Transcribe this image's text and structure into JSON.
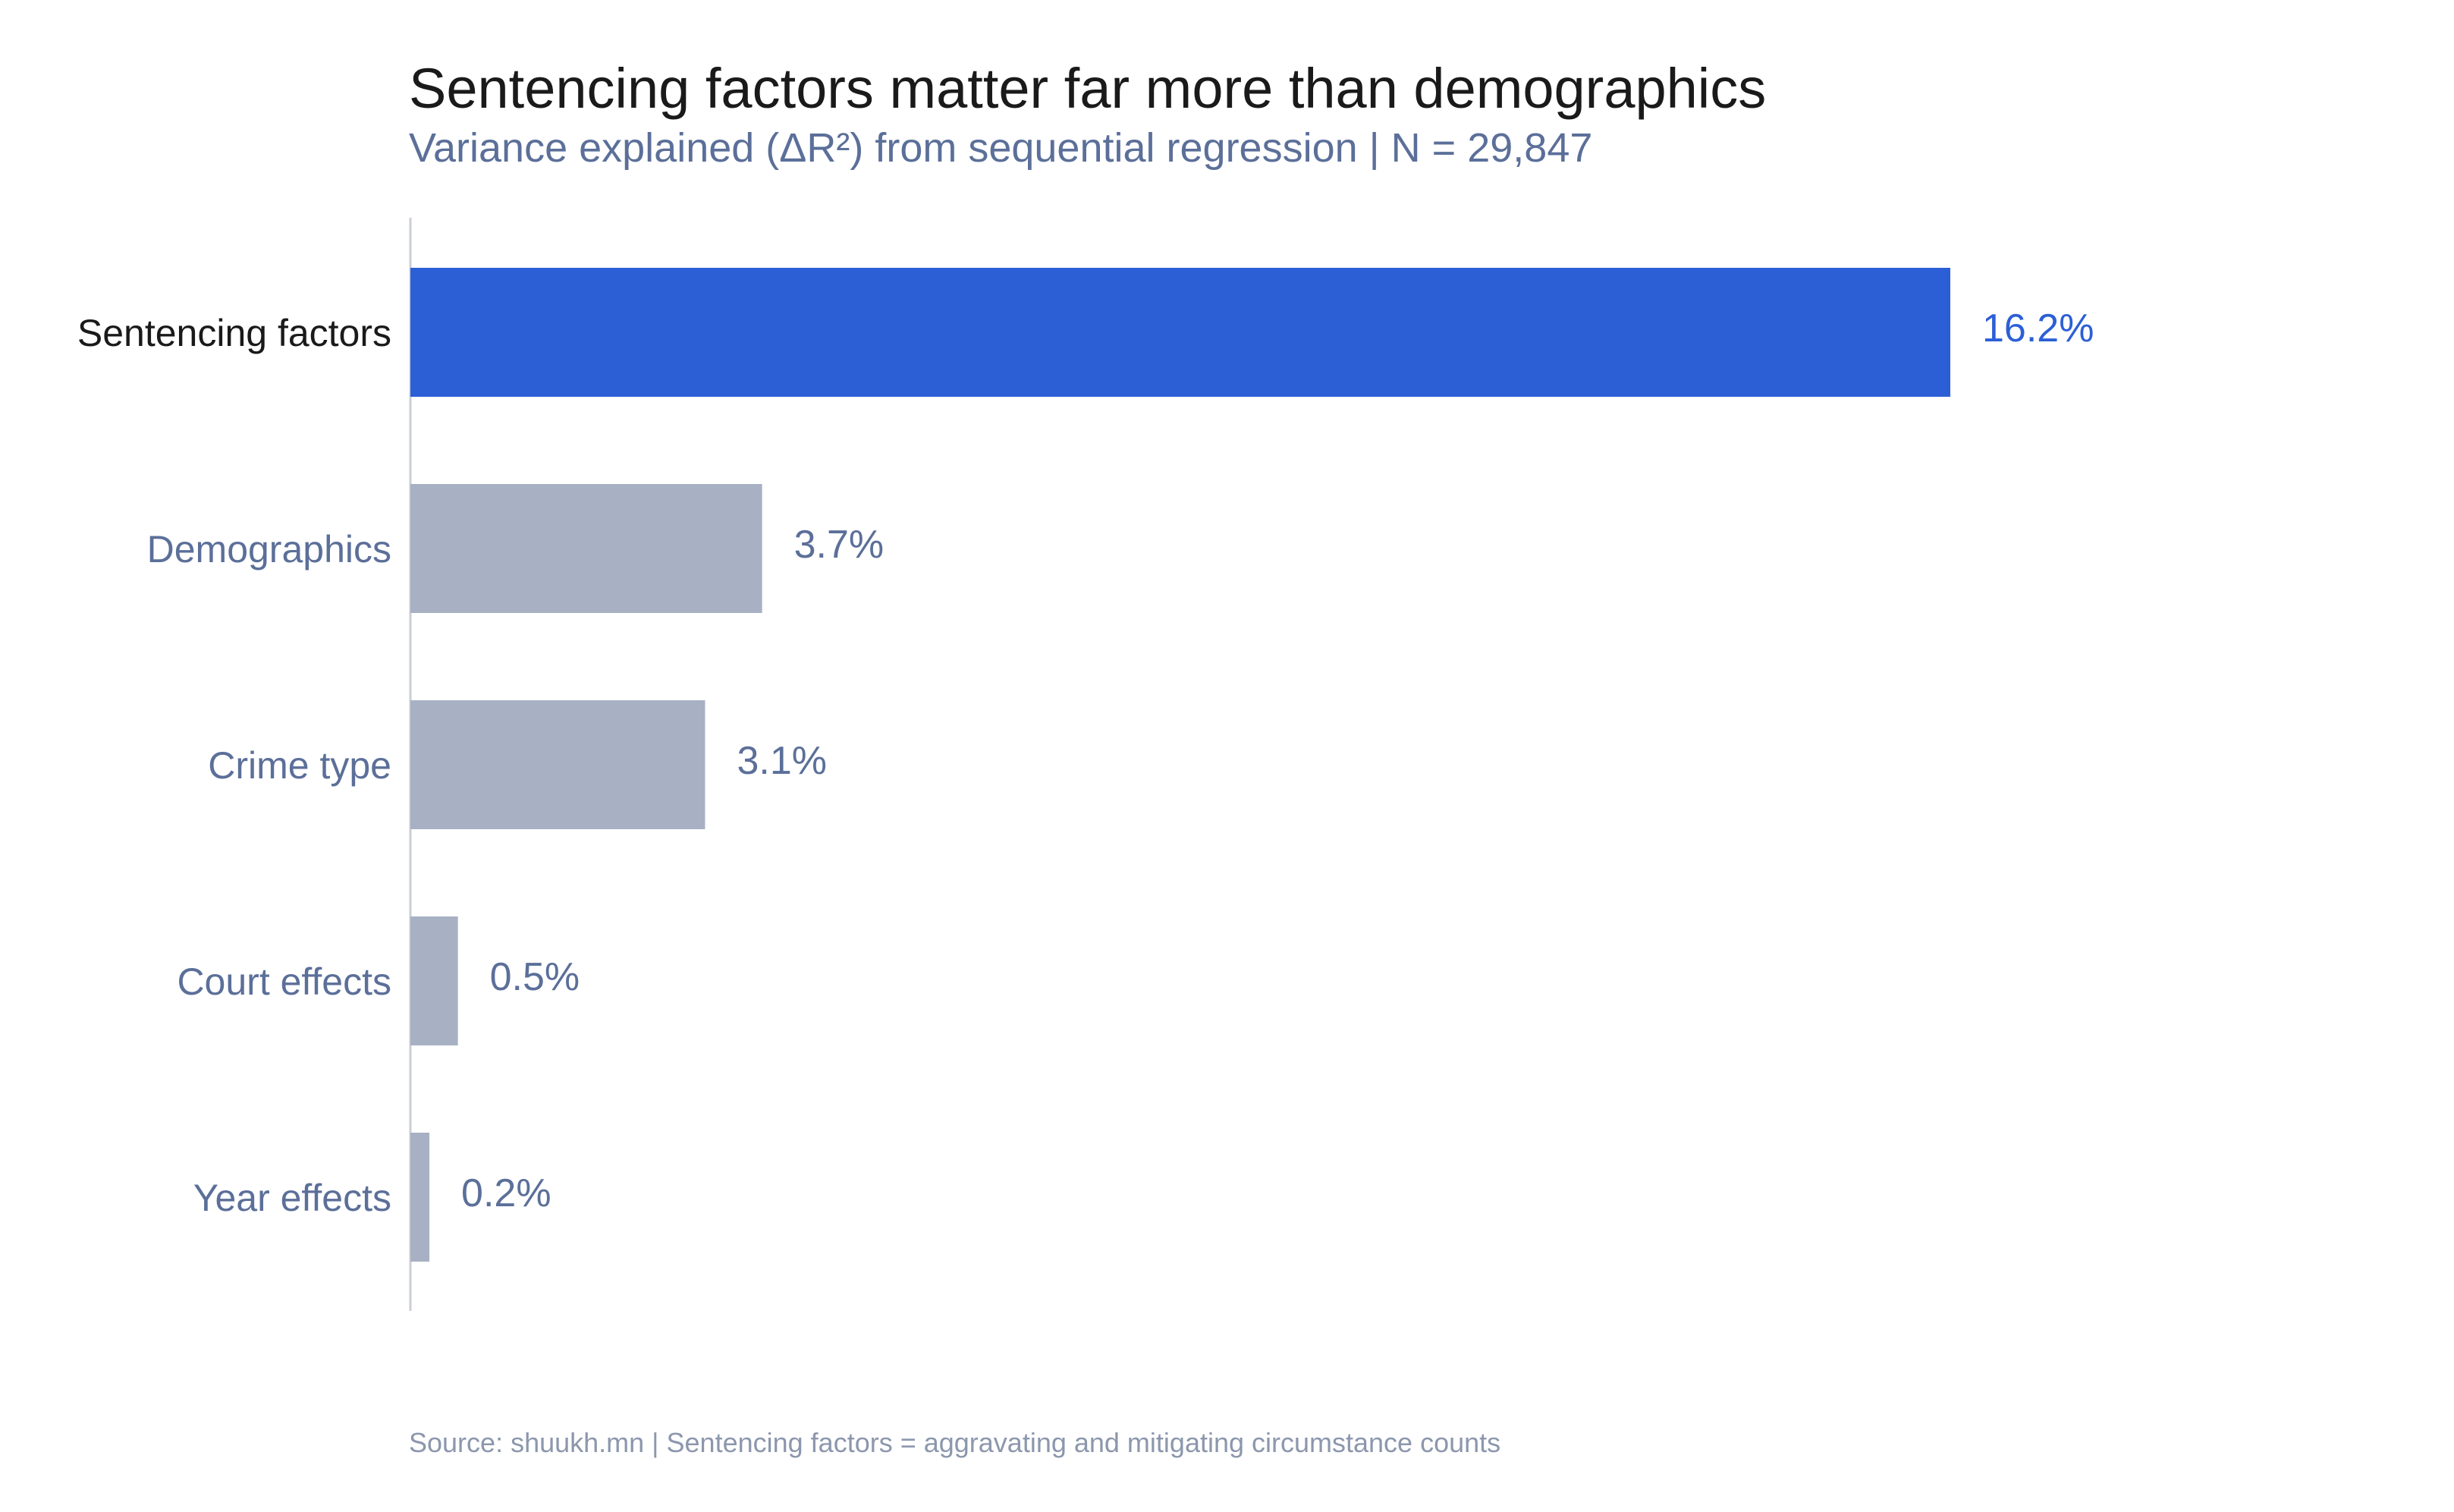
{
  "chart_data": {
    "type": "bar",
    "orientation": "horizontal",
    "title": "Sentencing factors matter far more than demographics",
    "subtitle": "Variance explained (ΔR²) from sequential regression | N = 29,847",
    "categories": [
      "Sentencing factors",
      "Demographics",
      "Crime type",
      "Court effects",
      "Year effects"
    ],
    "values": [
      16.2,
      3.7,
      3.1,
      0.5,
      0.2
    ],
    "value_labels": [
      "16.2%",
      "3.7%",
      "3.1%",
      "0.5%",
      "0.2%"
    ],
    "highlight_index": 0,
    "xlim": [
      0,
      16.2
    ],
    "grid": false,
    "legend": "none",
    "xlabel": "",
    "ylabel": "",
    "source": "Source: shuukh.mn | Sentencing factors = aggravating and mitigating circumstance counts"
  },
  "colors": {
    "highlight_bar": "#2c5fd6",
    "highlight_label": "#2c5fd6",
    "highlight_category": "#1a1a1a",
    "muted_bar": "#a8b1c3",
    "muted_label": "#5b6f99",
    "axis_line": "#c9ced8"
  }
}
